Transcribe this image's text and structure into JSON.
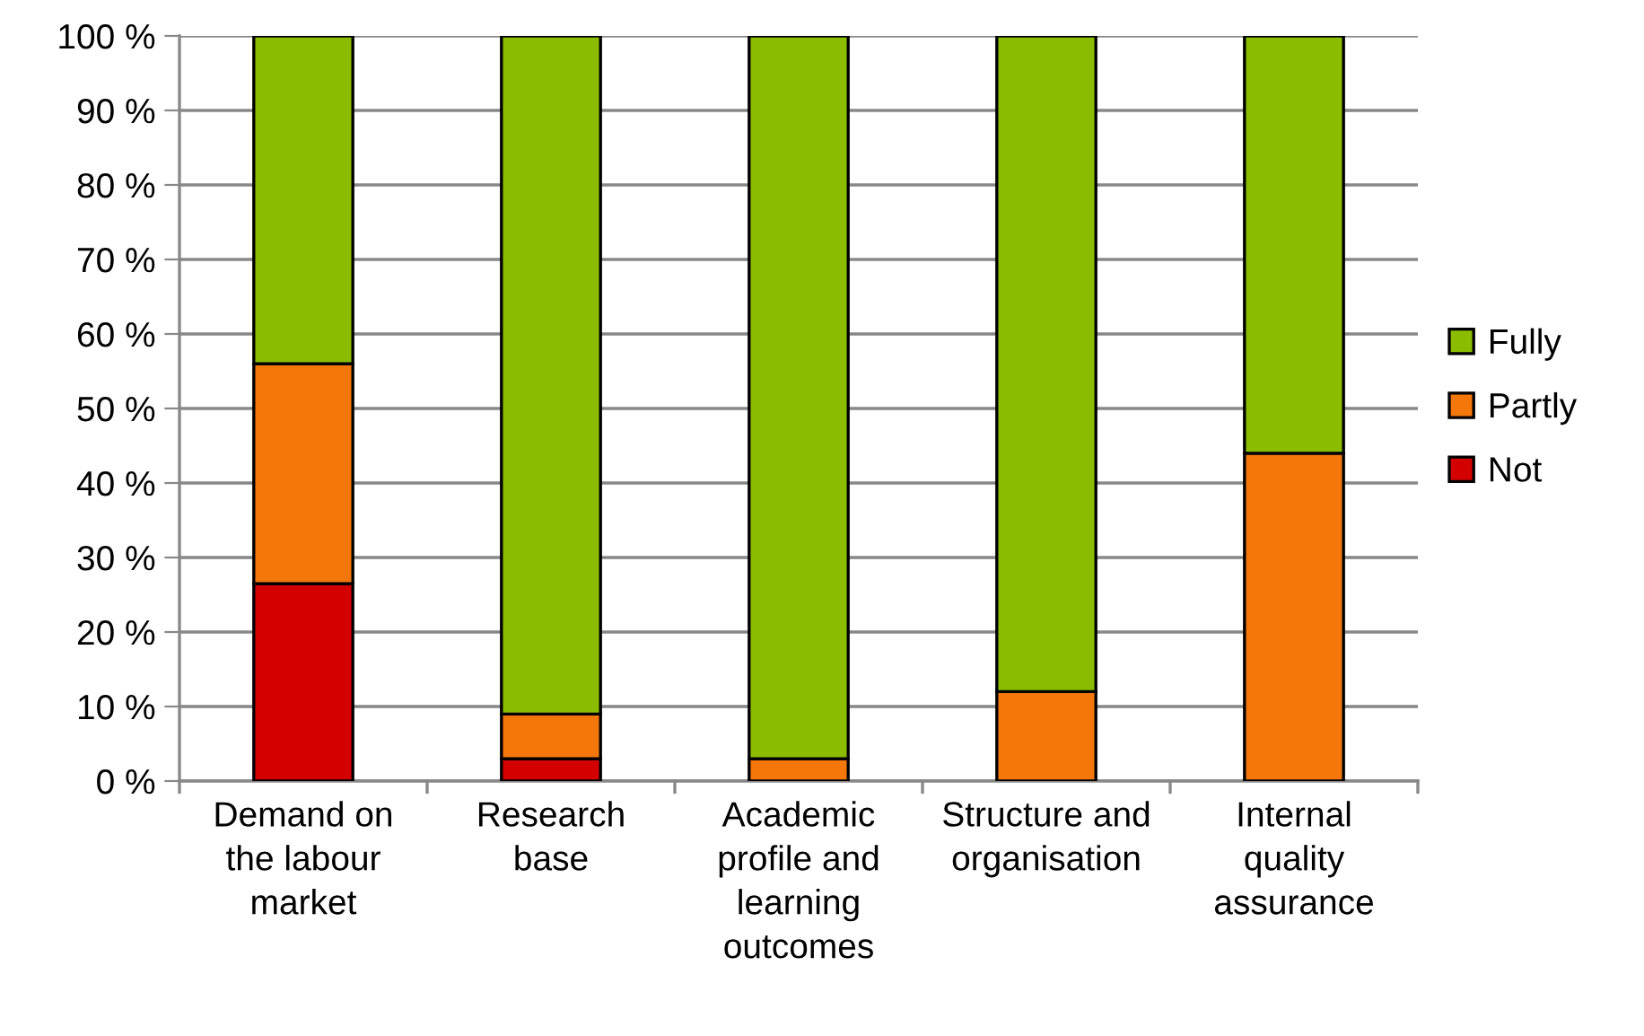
{
  "chart_data": {
    "type": "bar",
    "stacked": true,
    "categories": [
      "Demand on the labour market",
      "Research base",
      "Academic profile and learning outcomes",
      "Structure and organisation",
      "Internal quality assurance"
    ],
    "series": [
      {
        "name": "Not",
        "color": "#d40000",
        "values": [
          26.5,
          3,
          0,
          0,
          0
        ]
      },
      {
        "name": "Partly",
        "color": "#f4770c",
        "values": [
          29.5,
          6,
          3,
          12,
          44
        ]
      },
      {
        "name": "Fully",
        "color": "#8cbc00",
        "values": [
          44,
          91,
          97,
          88,
          56
        ]
      }
    ],
    "ylim": [
      0,
      100
    ],
    "yticks": [
      {
        "value": 0,
        "label": "0 %"
      },
      {
        "value": 10,
        "label": "10 %"
      },
      {
        "value": 20,
        "label": "20 %"
      },
      {
        "value": 30,
        "label": "30 %"
      },
      {
        "value": 40,
        "label": "40 %"
      },
      {
        "value": 50,
        "label": "50 %"
      },
      {
        "value": 60,
        "label": "60 %"
      },
      {
        "value": 70,
        "label": "70 %"
      },
      {
        "value": 80,
        "label": "80 %"
      },
      {
        "value": 90,
        "label": "90 %"
      },
      {
        "value": 100,
        "label": "100 %"
      }
    ],
    "grid": "y",
    "legend": "right"
  }
}
